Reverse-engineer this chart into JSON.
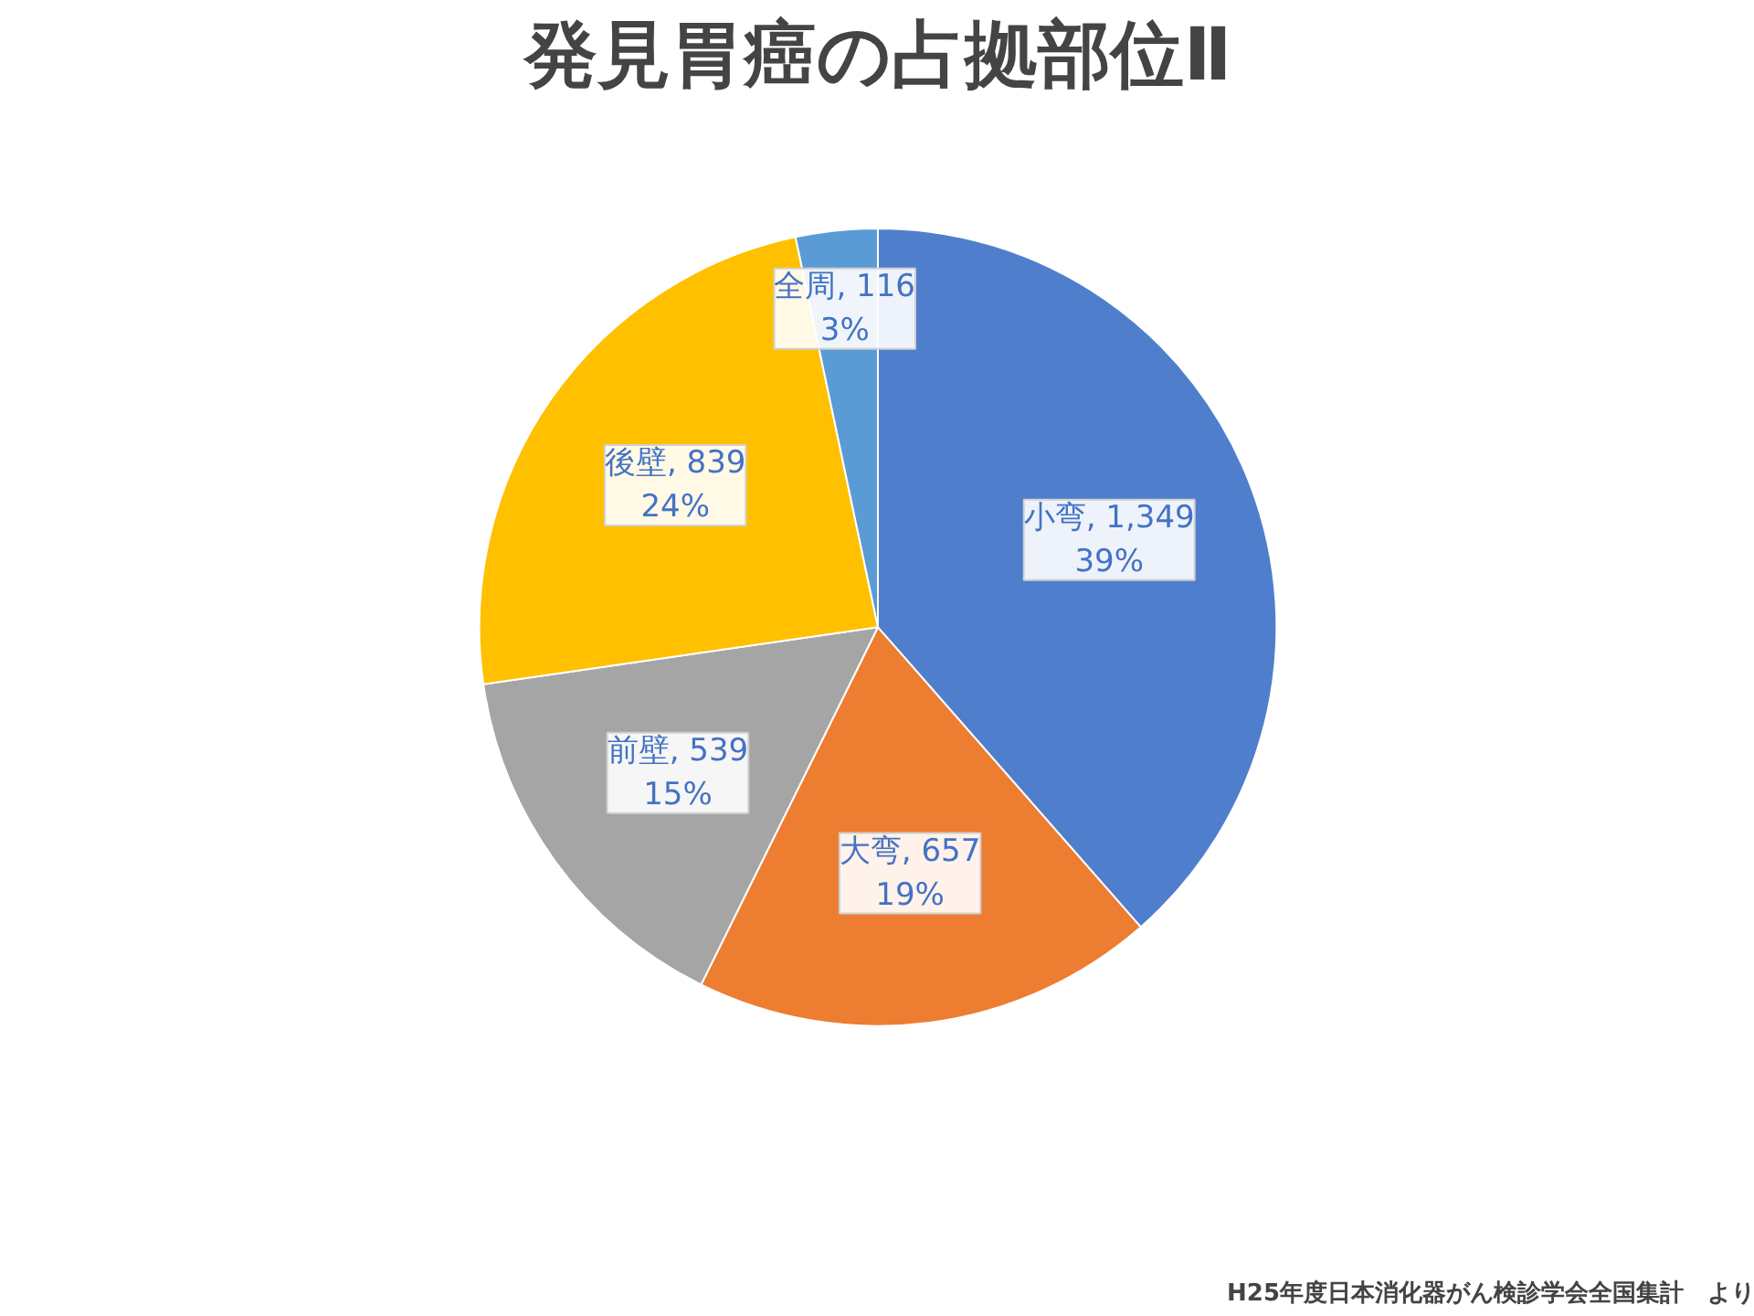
{
  "chart_data": {
    "type": "pie",
    "title": "発見胃癌の占拠部位Ⅱ",
    "categories": [
      "小弯",
      "大弯",
      "前壁",
      "後壁",
      "全周"
    ],
    "values": [
      1349,
      657,
      539,
      839,
      116
    ],
    "colors": [
      "#4f7fcc",
      "#ed7d31",
      "#a5a5a5",
      "#ffc000",
      "#5b9bd5"
    ],
    "value_labels": [
      "1,349\n39%",
      "657\n19%",
      "539\n15%",
      "839\n24%",
      "116\n3%"
    ],
    "annotations": [
      "H25年度日本消化器がん検診学会全国集計　より"
    ]
  }
}
